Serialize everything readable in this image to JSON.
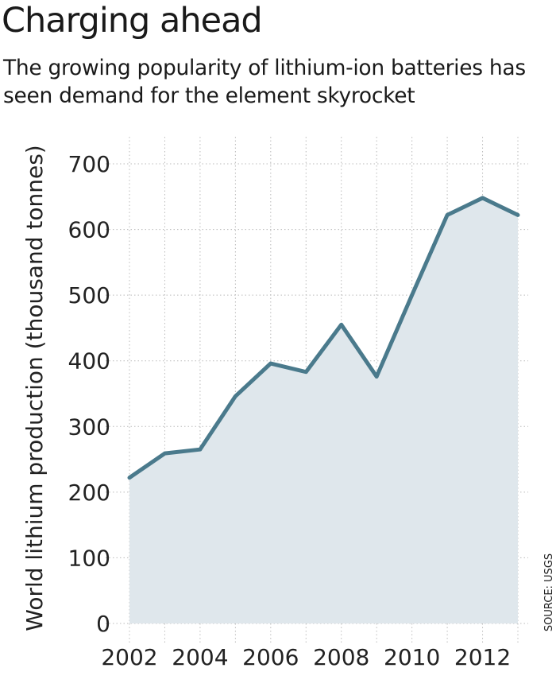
{
  "chart_data": {
    "type": "area",
    "title": "Charging ahead",
    "subtitle": "The growing popularity of lithium-ion batteries has seen demand for the element skyrocket",
    "xlabel": "",
    "ylabel": "World lithium production (thousand tonnes)",
    "source": "SOURCE: USGS",
    "x": [
      2002,
      2003,
      2004,
      2005,
      2006,
      2007,
      2008,
      2009,
      2010,
      2011,
      2012,
      2013
    ],
    "values": [
      222,
      259,
      265,
      346,
      396,
      383,
      455,
      376,
      500,
      622,
      648,
      622
    ],
    "xticks": [
      "2002",
      "2004",
      "2006",
      "2008",
      "2010",
      "2012"
    ],
    "yticks": [
      "0",
      "100",
      "200",
      "300",
      "400",
      "500",
      "600",
      "700"
    ],
    "ylim": [
      0,
      700
    ],
    "xlim": [
      2002,
      2013
    ],
    "grid": true,
    "colors": {
      "line": "#4a7a8c",
      "fill": "#dfe7ec",
      "grid": "#bbbbbb"
    }
  }
}
